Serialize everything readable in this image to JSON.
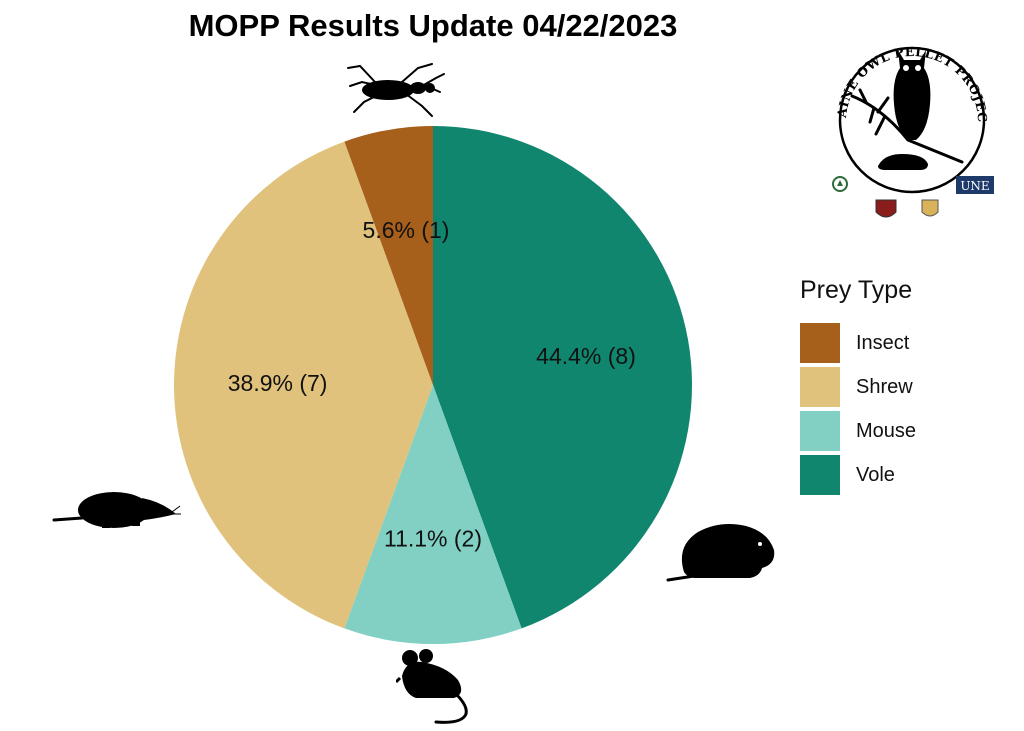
{
  "chart_data": {
    "type": "pie",
    "title": "MOPP Results Update 04/22/2023",
    "legend_title": "Prey Type",
    "legend_position": "right",
    "slices": [
      {
        "name": "Vole",
        "value": 8,
        "percent_label": "44.4% (8)",
        "color": "#11866f"
      },
      {
        "name": "Mouse",
        "value": 2,
        "percent_label": "11.1% (2)",
        "color": "#81d0c3"
      },
      {
        "name": "Shrew",
        "value": 7,
        "percent_label": "38.9% (7)",
        "color": "#e0c27d"
      },
      {
        "name": "Insect",
        "value": 1,
        "percent_label": "5.6% (1)",
        "color": "#a75f1c"
      }
    ],
    "legend_order": [
      "Insect",
      "Shrew",
      "Mouse",
      "Vole"
    ]
  },
  "logo": {
    "text": "MAINE OWL PELLET PROJECT",
    "partner_badge": "UNE"
  },
  "icons": {
    "insect": "beetle-silhouette-icon",
    "shrew": "shrew-silhouette-icon",
    "mouse": "mouse-silhouette-icon",
    "vole": "vole-silhouette-icon",
    "owl": "owl-icon"
  }
}
